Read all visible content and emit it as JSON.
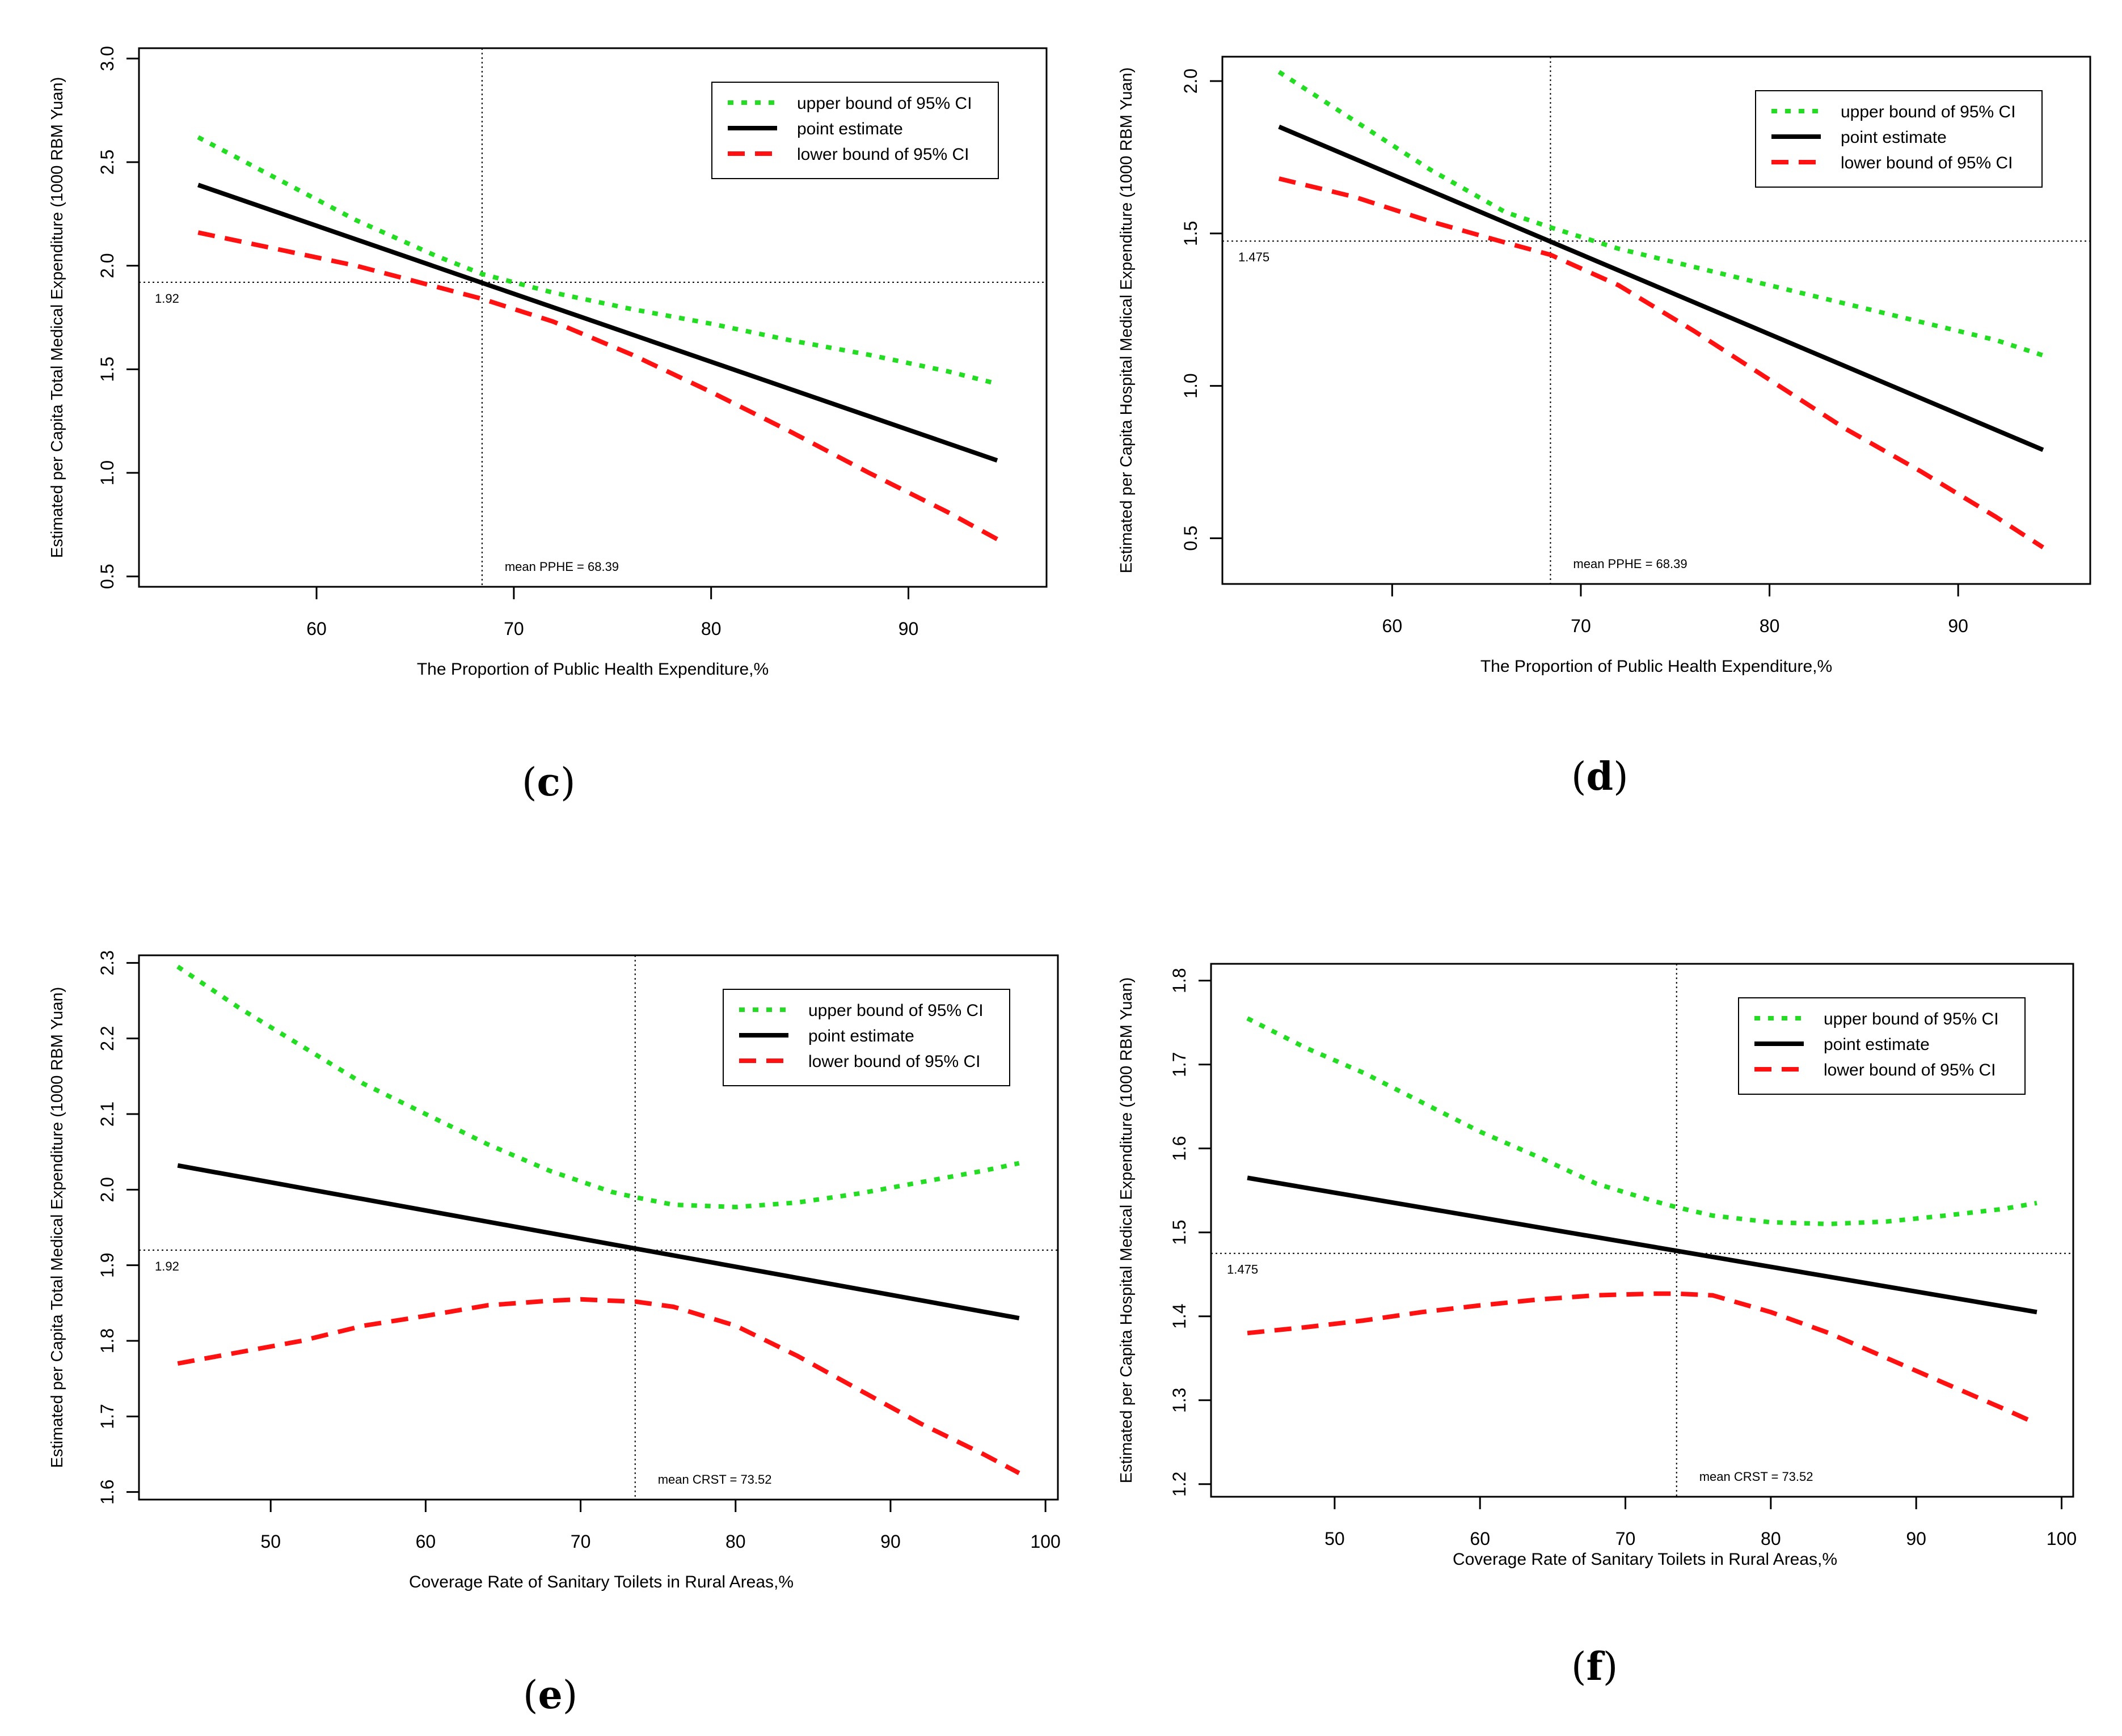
{
  "panel_labels": {
    "c": "c",
    "d": "d",
    "e": "e",
    "f": "f"
  },
  "legend_entries": [
    "upper bound of 95% CI",
    "point estimate",
    "lower bound of 95% CI"
  ],
  "colors": {
    "upper": "#22dd22",
    "point": "#000000",
    "lower": "#ff1111"
  },
  "chart_data": [
    {
      "panel": "c",
      "type": "line",
      "xlabel": "The Proportion of Public Health Expenditure,%",
      "ylabel": "Estimated per Capita Total Medical Expenditure (1000 RBM Yuan)",
      "xlim": [
        51,
        97
      ],
      "ylim": [
        0.45,
        3.05
      ],
      "xticks": [
        60,
        70,
        80,
        90
      ],
      "xtick_labels": [
        "60",
        "70",
        "80",
        "90"
      ],
      "yticks": [
        0.5,
        1.0,
        1.5,
        2.0,
        2.5,
        3.0
      ],
      "ytick_labels": [
        "0.5",
        "1.0",
        "1.5",
        "2.0",
        "2.5",
        "3.0"
      ],
      "ref_x": 68.39,
      "ref_y": 1.92,
      "ref_x_label": "mean PPHE = 68.39",
      "ref_y_label": "1.92",
      "legend_position": "top-right",
      "series": [
        {
          "name": "upper bound of 95% CI",
          "style": "dotted",
          "x": [
            54,
            58,
            62,
            66,
            68.39,
            72,
            76,
            80,
            84,
            88,
            92,
            94.5
          ],
          "y": [
            2.62,
            2.42,
            2.22,
            2.05,
            1.96,
            1.87,
            1.79,
            1.72,
            1.64,
            1.57,
            1.49,
            1.43
          ]
        },
        {
          "name": "point estimate",
          "style": "solid",
          "x": [
            54,
            94.5
          ],
          "y": [
            2.39,
            1.06
          ]
        },
        {
          "name": "lower bound of 95% CI",
          "style": "dashed",
          "x": [
            54,
            58,
            62,
            66,
            68.39,
            72,
            76,
            80,
            84,
            88,
            92,
            94.5
          ],
          "y": [
            2.16,
            2.08,
            2.0,
            1.9,
            1.84,
            1.73,
            1.57,
            1.39,
            1.2,
            1.0,
            0.81,
            0.68
          ]
        }
      ]
    },
    {
      "panel": "d",
      "type": "line",
      "xlabel": "The Proportion of Public Health Expenditure,%",
      "ylabel": "Estimated per Capita Hospital Medical Expenditure (1000 RBM Yuan)",
      "xlim": [
        51,
        97
      ],
      "ylim": [
        0.35,
        2.08
      ],
      "xticks": [
        60,
        70,
        80,
        90
      ],
      "xtick_labels": [
        "60",
        "70",
        "80",
        "90"
      ],
      "yticks": [
        0.5,
        1.0,
        1.5,
        2.0
      ],
      "ytick_labels": [
        "0.5",
        "1.0",
        "1.5",
        "2.0"
      ],
      "ref_x": 68.39,
      "ref_y": 1.475,
      "ref_x_label": "mean PPHE = 68.39",
      "ref_y_label": "1.475",
      "legend_position": "top-right",
      "series": [
        {
          "name": "upper bound of 95% CI",
          "style": "dotted",
          "x": [
            54,
            58,
            62,
            66,
            68.39,
            72,
            76,
            80,
            84,
            88,
            92,
            94.5
          ],
          "y": [
            2.03,
            1.87,
            1.71,
            1.57,
            1.52,
            1.45,
            1.39,
            1.33,
            1.27,
            1.21,
            1.15,
            1.1
          ]
        },
        {
          "name": "point estimate",
          "style": "solid",
          "x": [
            54,
            94.5
          ],
          "y": [
            1.85,
            0.79
          ]
        },
        {
          "name": "lower bound of 95% CI",
          "style": "dashed",
          "x": [
            54,
            58,
            62,
            66,
            68.39,
            72,
            76,
            80,
            84,
            88,
            92,
            94.5
          ],
          "y": [
            1.68,
            1.62,
            1.54,
            1.47,
            1.43,
            1.33,
            1.18,
            1.02,
            0.86,
            0.72,
            0.57,
            0.47
          ]
        }
      ]
    },
    {
      "panel": "e",
      "type": "line",
      "xlabel": "Coverage Rate of Sanitary Toilets in Rural Areas,%",
      "ylabel": "Estimated per Capita Total Medical Expenditure (1000 RBM Yuan)",
      "xlim": [
        41.5,
        100.8
      ],
      "ylim": [
        1.59,
        2.31
      ],
      "xticks": [
        50,
        60,
        70,
        80,
        90,
        100
      ],
      "xtick_labels": [
        "50",
        "60",
        "70",
        "80",
        "90",
        "100"
      ],
      "yticks": [
        1.6,
        1.7,
        1.8,
        1.9,
        2.0,
        2.1,
        2.2,
        2.3
      ],
      "ytick_labels": [
        "1.6",
        "1.7",
        "1.8",
        "1.9",
        "2.0",
        "2.1",
        "2.2",
        "2.3"
      ],
      "ref_x": 73.52,
      "ref_y": 1.92,
      "ref_x_label": "mean CRST = 73.52",
      "ref_y_label": "1.92",
      "legend_position": "top-right",
      "series": [
        {
          "name": "upper bound of 95% CI",
          "style": "dotted",
          "x": [
            44,
            48,
            52,
            56,
            60,
            64,
            68,
            72,
            73.52,
            76,
            80,
            84,
            88,
            92,
            96,
            98.3
          ],
          "y": [
            2.295,
            2.24,
            2.19,
            2.14,
            2.1,
            2.06,
            2.025,
            1.997,
            1.99,
            1.98,
            1.977,
            1.983,
            1.995,
            2.01,
            2.025,
            2.035
          ]
        },
        {
          "name": "point estimate",
          "style": "solid",
          "x": [
            44,
            98.3
          ],
          "y": [
            2.032,
            1.83
          ]
        },
        {
          "name": "lower bound of 95% CI",
          "style": "dashed",
          "x": [
            44,
            48,
            52,
            56,
            60,
            64,
            68,
            70,
            72,
            73.52,
            76,
            80,
            84,
            88,
            92,
            96,
            98.3
          ],
          "y": [
            1.77,
            1.785,
            1.8,
            1.82,
            1.833,
            1.847,
            1.853,
            1.855,
            1.853,
            1.852,
            1.845,
            1.82,
            1.78,
            1.735,
            1.69,
            1.65,
            1.625
          ]
        }
      ]
    },
    {
      "panel": "f",
      "type": "line",
      "xlabel": "Coverage Rate of Sanitary Toilets in Rural Areas,%",
      "ylabel": "Estimated per Capita Hospital Medical Expenditure (1000 RBM Yuan)",
      "xlim": [
        41.5,
        100.8
      ],
      "ylim": [
        1.185,
        1.82
      ],
      "xticks": [
        50,
        60,
        70,
        80,
        90,
        100
      ],
      "xtick_labels": [
        "50",
        "60",
        "70",
        "80",
        "90",
        "100"
      ],
      "yticks": [
        1.2,
        1.3,
        1.4,
        1.5,
        1.6,
        1.7,
        1.8
      ],
      "ytick_labels": [
        "1.2",
        "1.3",
        "1.4",
        "1.5",
        "1.6",
        "1.7",
        "1.8"
      ],
      "ref_x": 73.52,
      "ref_y": 1.475,
      "ref_x_label": "mean CRST = 73.52",
      "ref_y_label": "1.475",
      "legend_position": "top-right",
      "series": [
        {
          "name": "upper bound of 95% CI",
          "style": "dotted",
          "x": [
            44,
            48,
            52,
            56,
            60,
            64,
            68,
            72,
            73.52,
            76,
            80,
            84,
            88,
            92,
            96,
            98.3
          ],
          "y": [
            1.755,
            1.72,
            1.69,
            1.655,
            1.62,
            1.59,
            1.558,
            1.537,
            1.53,
            1.52,
            1.512,
            1.51,
            1.513,
            1.52,
            1.528,
            1.535
          ]
        },
        {
          "name": "point estimate",
          "style": "solid",
          "x": [
            44,
            98.3
          ],
          "y": [
            1.565,
            1.405
          ]
        },
        {
          "name": "lower bound of 95% CI",
          "style": "dashed",
          "x": [
            44,
            48,
            52,
            56,
            60,
            64,
            68,
            70,
            72,
            73.52,
            76,
            80,
            84,
            88,
            92,
            96,
            98.3
          ],
          "y": [
            1.38,
            1.387,
            1.395,
            1.405,
            1.413,
            1.42,
            1.425,
            1.426,
            1.427,
            1.427,
            1.425,
            1.405,
            1.38,
            1.35,
            1.32,
            1.29,
            1.272
          ]
        }
      ]
    }
  ]
}
